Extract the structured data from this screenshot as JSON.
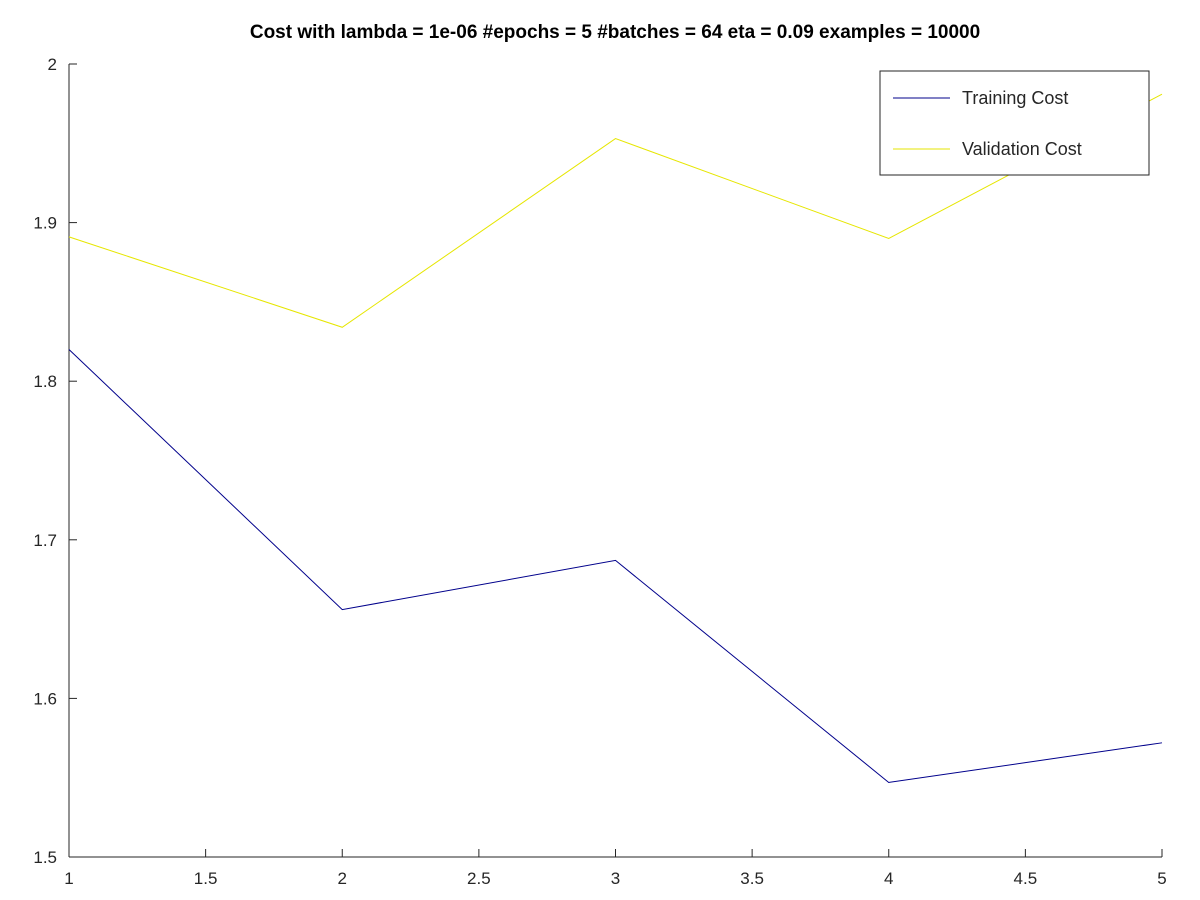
{
  "chart_data": {
    "type": "line",
    "title": "Cost with lambda = 1e-06 #epochs = 5 #batches = 64 eta = 0.09 examples = 10000",
    "xlabel": "",
    "ylabel": "",
    "xlim": [
      1,
      5
    ],
    "ylim": [
      1.5,
      2.0
    ],
    "x": [
      1,
      2,
      3,
      4,
      5
    ],
    "x_ticks": [
      1,
      1.5,
      2,
      2.5,
      3,
      3.5,
      4,
      4.5,
      5
    ],
    "x_tick_labels": [
      "1",
      "1.5",
      "2",
      "2.5",
      "3",
      "3.5",
      "4",
      "4.5",
      "5"
    ],
    "y_ticks": [
      1.5,
      1.6,
      1.7,
      1.8,
      1.9,
      2.0
    ],
    "y_tick_labels": [
      "1.5",
      "1.6",
      "1.7",
      "1.8",
      "1.9",
      "2"
    ],
    "grid": false,
    "legend_position": "top-right",
    "series": [
      {
        "name": "Training Cost",
        "color": "#00008b",
        "values": [
          1.82,
          1.656,
          1.687,
          1.547,
          1.572
        ]
      },
      {
        "name": "Validation Cost",
        "color": "#e6e600",
        "values": [
          1.891,
          1.834,
          1.953,
          1.89,
          1.981
        ]
      }
    ]
  }
}
